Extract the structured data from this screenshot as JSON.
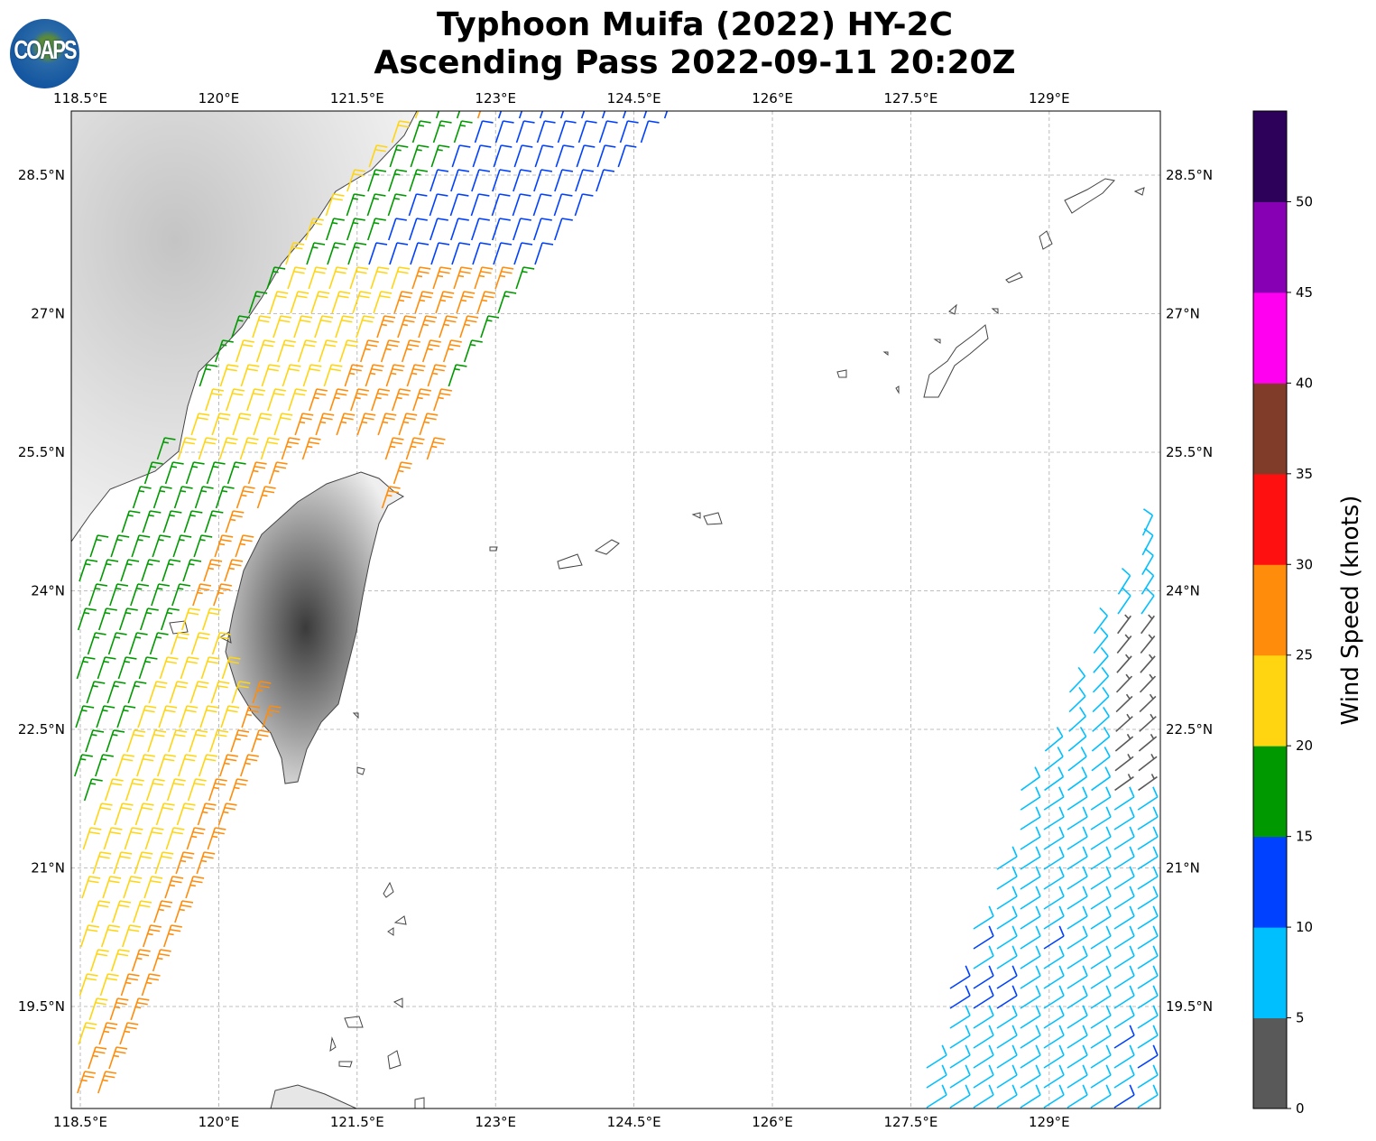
{
  "title": {
    "line1": "Typhoon Muifa (2022) HY-2C",
    "line2": "Ascending Pass 2022-09-11 20:20Z"
  },
  "logo": {
    "text": "COAPS"
  },
  "axes": {
    "lon_ticks": [
      118.5,
      120,
      121.5,
      123,
      124.5,
      126,
      127.5,
      129
    ],
    "lon_labels": [
      "118.5°E",
      "120°E",
      "121.5°E",
      "123°E",
      "124.5°E",
      "126°E",
      "127.5°E",
      "129°E"
    ],
    "lat_ticks": [
      28.5,
      27,
      25.5,
      24,
      22.5,
      21,
      19.5
    ],
    "lat_labels": [
      "28.5°N",
      "27°N",
      "25.5°N",
      "24°N",
      "22.5°N",
      "21°N",
      "19.5°N"
    ],
    "lon_range": [
      118.4,
      130.2
    ],
    "lat_range": [
      18.3,
      29.2
    ]
  },
  "colorbar": {
    "label": "Wind Speed (knots)",
    "tick_labels": [
      "0",
      "5",
      "10",
      "15",
      "20",
      "25",
      "30",
      "35",
      "40",
      "45",
      "50"
    ],
    "levels": [
      0,
      5,
      10,
      15,
      20,
      25,
      30,
      35,
      40,
      45,
      50,
      55
    ],
    "colors": [
      "#595959",
      "#00bfff",
      "#0040ff",
      "#009900",
      "#ffd512",
      "#ff8c0a",
      "#ff1010",
      "#803c28",
      "#ff00f0",
      "#8800b4",
      "#2d005a"
    ]
  },
  "chart_data": {
    "type": "wind-barb-map",
    "title": "Typhoon Muifa (2022) HY-2C Ascending Pass 2022-09-11 20:20Z",
    "units": "knots",
    "swaths": [
      {
        "name": "western swath (Taiwan Strait / East China Sea)",
        "speed_range_kt": [
          10,
          30
        ],
        "dominant_direction": "from NNE"
      },
      {
        "name": "eastern swath (Philippine Sea)",
        "speed_range_kt": [
          0,
          15
        ],
        "dominant_direction": "from NE"
      }
    ]
  }
}
